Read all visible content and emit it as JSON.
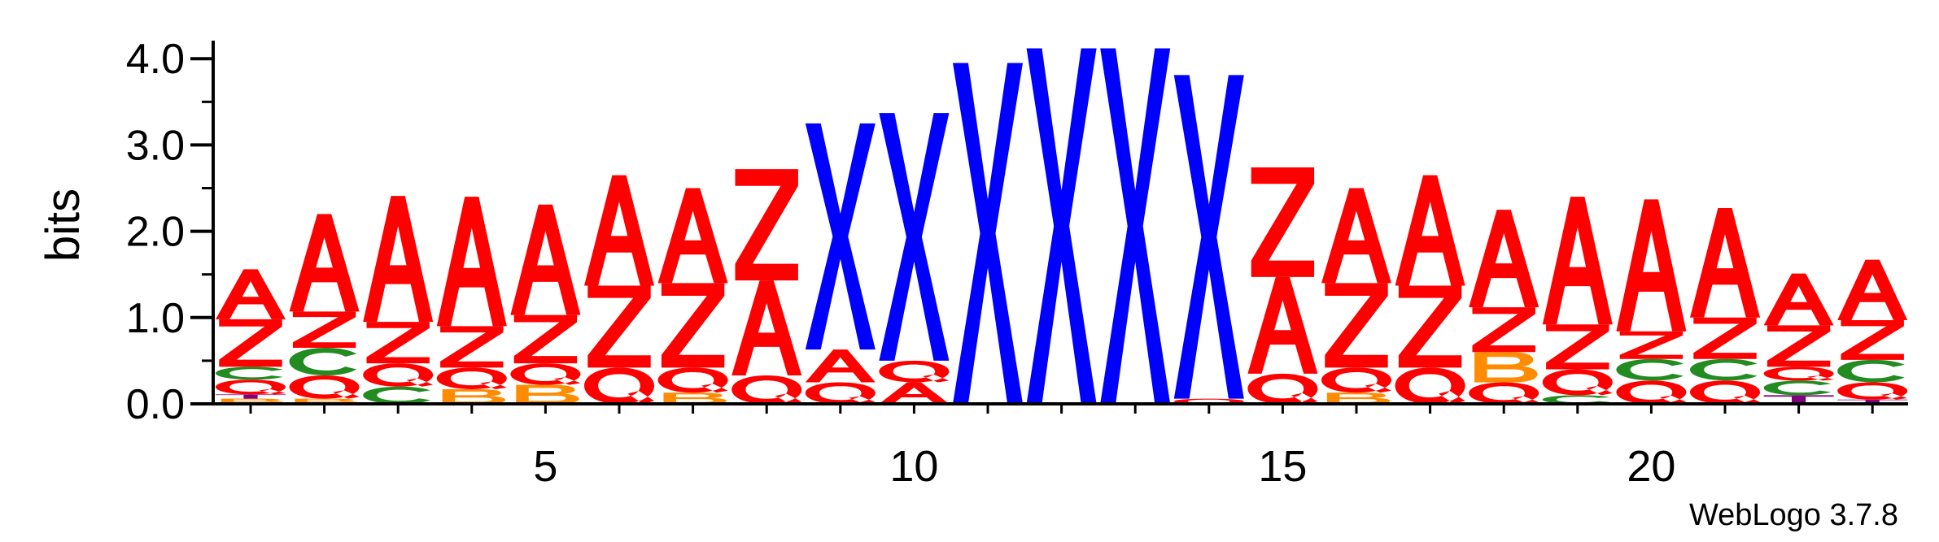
{
  "chart_data": {
    "type": "sequence-logo",
    "ylabel": "bits",
    "ylim": [
      0,
      4.2
    ],
    "y_ticks": [
      {
        "value": 0.0,
        "label": "0.0"
      },
      {
        "value": 1.0,
        "label": "1.0"
      },
      {
        "value": 2.0,
        "label": "2.0"
      },
      {
        "value": 3.0,
        "label": "3.0"
      },
      {
        "value": 4.0,
        "label": "4.0"
      }
    ],
    "x_ticks": [
      {
        "value": 5,
        "label": "5"
      },
      {
        "value": 10,
        "label": "10"
      },
      {
        "value": 15,
        "label": "15"
      },
      {
        "value": 20,
        "label": "20"
      }
    ],
    "footer": "WebLogo 3.7.8",
    "colors": {
      "A": "#ff0000",
      "Z": "#ff0000",
      "Q": "#ff0000",
      "X": "#0000ff",
      "C": "#228b22",
      "B": "#ff8c00",
      "T": "#800080"
    },
    "positions": [
      {
        "position": 1,
        "stack": [
          {
            "letter": "B",
            "height": 0.06
          },
          {
            "letter": "T",
            "height": 0.05
          },
          {
            "letter": "Q",
            "height": 0.17
          },
          {
            "letter": "C",
            "height": 0.15
          },
          {
            "letter": "Z",
            "height": 0.55
          },
          {
            "letter": "A",
            "height": 0.58
          }
        ]
      },
      {
        "position": 2,
        "stack": [
          {
            "letter": "B",
            "height": 0.06
          },
          {
            "letter": "Q",
            "height": 0.27
          },
          {
            "letter": "C",
            "height": 0.32
          },
          {
            "letter": "Z",
            "height": 0.42
          },
          {
            "letter": "A",
            "height": 1.13
          }
        ]
      },
      {
        "position": 3,
        "stack": [
          {
            "letter": "C",
            "height": 0.2
          },
          {
            "letter": "Q",
            "height": 0.27
          },
          {
            "letter": "Z",
            "height": 0.48
          },
          {
            "letter": "A",
            "height": 1.46
          }
        ]
      },
      {
        "position": 4,
        "stack": [
          {
            "letter": "B",
            "height": 0.17
          },
          {
            "letter": "Q",
            "height": 0.25
          },
          {
            "letter": "Z",
            "height": 0.48
          },
          {
            "letter": "A",
            "height": 1.5
          }
        ]
      },
      {
        "position": 5,
        "stack": [
          {
            "letter": "B",
            "height": 0.22
          },
          {
            "letter": "Q",
            "height": 0.25
          },
          {
            "letter": "Z",
            "height": 0.56
          },
          {
            "letter": "A",
            "height": 1.28
          }
        ]
      },
      {
        "position": 6,
        "stack": [
          {
            "letter": "Q",
            "height": 0.42
          },
          {
            "letter": "Z",
            "height": 0.95
          },
          {
            "letter": "A",
            "height": 1.28
          }
        ]
      },
      {
        "position": 7,
        "stack": [
          {
            "letter": "B",
            "height": 0.13
          },
          {
            "letter": "Q",
            "height": 0.29
          },
          {
            "letter": "Z",
            "height": 0.98
          },
          {
            "letter": "A",
            "height": 1.1
          }
        ]
      },
      {
        "position": 8,
        "stack": [
          {
            "letter": "Q",
            "height": 0.33
          },
          {
            "letter": "A",
            "height": 1.1
          },
          {
            "letter": "Z",
            "height": 1.29
          }
        ]
      },
      {
        "position": 9,
        "stack": [
          {
            "letter": "Q",
            "height": 0.25
          },
          {
            "letter": "A",
            "height": 0.38
          },
          {
            "letter": "X",
            "height": 2.62
          }
        ]
      },
      {
        "position": 10,
        "stack": [
          {
            "letter": "A",
            "height": 0.25
          },
          {
            "letter": "Q",
            "height": 0.25
          },
          {
            "letter": "X",
            "height": 2.87
          }
        ]
      },
      {
        "position": 11,
        "stack": [
          {
            "letter": "X",
            "height": 3.95
          }
        ]
      },
      {
        "position": 12,
        "stack": [
          {
            "letter": "X",
            "height": 4.12
          }
        ]
      },
      {
        "position": 13,
        "stack": [
          {
            "letter": "X",
            "height": 4.12
          }
        ]
      },
      {
        "position": 14,
        "stack": [
          {
            "letter": "Q",
            "height": 0.06
          },
          {
            "letter": "X",
            "height": 3.75
          }
        ]
      },
      {
        "position": 15,
        "stack": [
          {
            "letter": "Q",
            "height": 0.35
          },
          {
            "letter": "A",
            "height": 1.12
          },
          {
            "letter": "Z",
            "height": 1.27
          }
        ]
      },
      {
        "position": 16,
        "stack": [
          {
            "letter": "B",
            "height": 0.13
          },
          {
            "letter": "Q",
            "height": 0.29
          },
          {
            "letter": "Z",
            "height": 0.98
          },
          {
            "letter": "A",
            "height": 1.1
          }
        ]
      },
      {
        "position": 17,
        "stack": [
          {
            "letter": "Q",
            "height": 0.42
          },
          {
            "letter": "Z",
            "height": 0.95
          },
          {
            "letter": "A",
            "height": 1.28
          }
        ]
      },
      {
        "position": 18,
        "stack": [
          {
            "letter": "Q",
            "height": 0.25
          },
          {
            "letter": "B",
            "height": 0.35
          },
          {
            "letter": "Z",
            "height": 0.52
          },
          {
            "letter": "A",
            "height": 1.13
          }
        ]
      },
      {
        "position": 19,
        "stack": [
          {
            "letter": "C",
            "height": 0.1
          },
          {
            "letter": "Q",
            "height": 0.3
          },
          {
            "letter": "Z",
            "height": 0.52
          },
          {
            "letter": "A",
            "height": 1.48
          }
        ]
      },
      {
        "position": 20,
        "stack": [
          {
            "letter": "Q",
            "height": 0.27
          },
          {
            "letter": "C",
            "height": 0.25
          },
          {
            "letter": "Z",
            "height": 0.32
          },
          {
            "letter": "A",
            "height": 1.53
          }
        ]
      },
      {
        "position": 21,
        "stack": [
          {
            "letter": "Q",
            "height": 0.27
          },
          {
            "letter": "C",
            "height": 0.25
          },
          {
            "letter": "Z",
            "height": 0.48
          },
          {
            "letter": "A",
            "height": 1.27
          }
        ]
      },
      {
        "position": 22,
        "stack": [
          {
            "letter": "T",
            "height": 0.1
          },
          {
            "letter": "C",
            "height": 0.17
          },
          {
            "letter": "Q",
            "height": 0.16
          },
          {
            "letter": "Z",
            "height": 0.48
          },
          {
            "letter": "A",
            "height": 0.6
          }
        ]
      },
      {
        "position": 23,
        "stack": [
          {
            "letter": "T",
            "height": 0.05
          },
          {
            "letter": "Q",
            "height": 0.2
          },
          {
            "letter": "C",
            "height": 0.26
          },
          {
            "letter": "Z",
            "height": 0.46
          },
          {
            "letter": "A",
            "height": 0.7
          }
        ]
      }
    ]
  }
}
